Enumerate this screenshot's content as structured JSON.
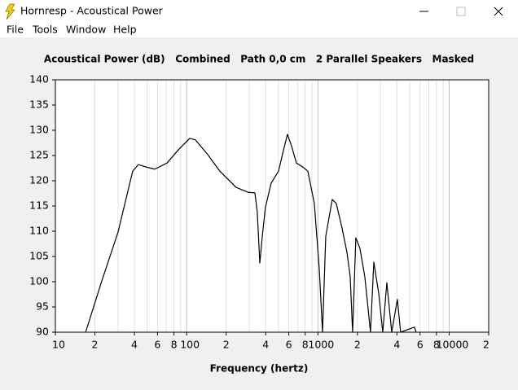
{
  "window": {
    "title": "Hornresp - Acoustical Power",
    "menu": [
      "File",
      "Tools",
      "Window",
      "Help"
    ]
  },
  "chart_data": {
    "type": "line",
    "title": "Acoustical Power (dB)   Combined   Path 0,0 cm   2 Parallel Speakers   Masked",
    "x_label": "Frequency (hertz)",
    "xlog": true,
    "grid": true,
    "xlim": [
      10,
      20000
    ],
    "ylim": [
      90,
      140
    ],
    "xticks": [
      10,
      {
        "value": 20,
        "label": "2"
      },
      {
        "value": 40,
        "label": "4"
      },
      {
        "value": 60,
        "label": "6"
      },
      {
        "value": 80,
        "label": "8"
      },
      100,
      {
        "value": 200,
        "label": "2"
      },
      {
        "value": 400,
        "label": "4"
      },
      {
        "value": 600,
        "label": "6"
      },
      {
        "value": 800,
        "label": "8"
      },
      1000,
      {
        "value": 2000,
        "label": "2"
      },
      {
        "value": 4000,
        "label": "4"
      },
      {
        "value": 6000,
        "label": "6"
      },
      {
        "value": 8000,
        "label": "8"
      },
      10000,
      {
        "value": 20000,
        "label": "2"
      }
    ],
    "xminor": [
      30,
      50,
      70,
      90,
      300,
      500,
      700,
      900,
      3000,
      5000,
      7000,
      9000
    ],
    "yticks": [
      90,
      95,
      100,
      105,
      110,
      115,
      120,
      125,
      130,
      135,
      140
    ],
    "series": [
      {
        "color": "#000000",
        "x": [
          17,
          22.6,
          30,
          38.8,
          42.9,
          49.5,
          57.1,
          70.8,
          87.7,
          105.6,
          116.7,
          144.6,
          179,
          238,
          295,
          331,
          345,
          361,
          377,
          398,
          440,
          501,
          546,
          586,
          631,
          686,
          769,
          838,
          939,
          1024,
          1084,
          1148,
          1286,
          1380,
          1528,
          1665,
          1762,
          1838,
          1946,
          2090,
          2277,
          2515,
          2667,
          2906,
          3119,
          3350,
          3650,
          4030,
          4267,
          5440,
          5600
        ],
        "values": [
          90,
          100.2,
          109.8,
          121.9,
          123.2,
          122.7,
          122.3,
          123.5,
          126.3,
          128.4,
          128.1,
          125.2,
          121.9,
          118.7,
          117.7,
          117.6,
          113.9,
          103.7,
          109,
          114.7,
          119.5,
          121.9,
          126,
          129.2,
          126.8,
          123.5,
          122.7,
          121.9,
          115.5,
          102.6,
          90,
          109,
          116.3,
          115.5,
          110.6,
          105.8,
          101,
          90,
          108.7,
          106.6,
          101,
          90,
          103.9,
          97.7,
          90,
          99.8,
          90,
          96.5,
          90,
          91,
          90
        ]
      }
    ]
  }
}
